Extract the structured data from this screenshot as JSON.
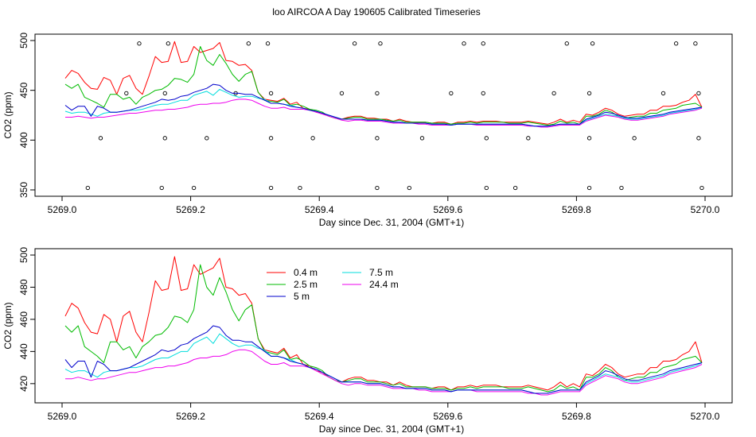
{
  "title": "loo AIRCOA A  Day 190605  Calibrated Timeseries",
  "series_colors": {
    "0.4 m": "#ff0000",
    "2.5 m": "#00bb00",
    "5 m": "#0000cc",
    "7.5 m": "#00dddd",
    "24.4 m": "#ee00ee"
  },
  "chart_data": [
    {
      "type": "line",
      "xlabel": "Day since Dec. 31, 2004 (GMT+1)",
      "ylabel": "CO2 (ppm)",
      "xlim": [
        5269.0,
        5270.0
      ],
      "ylim": [
        350,
        500
      ],
      "xticks": [
        "5269.0",
        "5269.2",
        "5269.4",
        "5269.6",
        "5269.8",
        "5270.0"
      ],
      "yticks": [
        "350",
        "400",
        "450",
        "500"
      ],
      "grid": false,
      "legend": "none",
      "x": [
        5269.005,
        5269.015,
        5269.025,
        5269.035,
        5269.045,
        5269.055,
        5269.065,
        5269.075,
        5269.085,
        5269.095,
        5269.105,
        5269.115,
        5269.125,
        5269.135,
        5269.145,
        5269.155,
        5269.165,
        5269.175,
        5269.185,
        5269.195,
        5269.205,
        5269.215,
        5269.225,
        5269.235,
        5269.245,
        5269.255,
        5269.265,
        5269.275,
        5269.285,
        5269.295,
        5269.305,
        5269.315,
        5269.325,
        5269.335,
        5269.345,
        5269.355,
        5269.365,
        5269.375,
        5269.385,
        5269.395,
        5269.405,
        5269.415,
        5269.425,
        5269.435,
        5269.445,
        5269.455,
        5269.465,
        5269.475,
        5269.485,
        5269.495,
        5269.505,
        5269.515,
        5269.525,
        5269.535,
        5269.545,
        5269.555,
        5269.565,
        5269.575,
        5269.585,
        5269.595,
        5269.605,
        5269.615,
        5269.625,
        5269.635,
        5269.645,
        5269.655,
        5269.665,
        5269.675,
        5269.685,
        5269.695,
        5269.705,
        5269.715,
        5269.725,
        5269.735,
        5269.745,
        5269.755,
        5269.765,
        5269.775,
        5269.785,
        5269.795,
        5269.805,
        5269.815,
        5269.825,
        5269.835,
        5269.845,
        5269.855,
        5269.865,
        5269.875,
        5269.885,
        5269.895,
        5269.905,
        5269.915,
        5269.925,
        5269.935,
        5269.945,
        5269.955,
        5269.965,
        5269.975,
        5269.985,
        5269.995
      ],
      "series": [
        {
          "name": "0.4 m",
          "color": "#ff0000",
          "values": [
            462,
            470,
            467,
            458,
            452,
            451,
            463,
            460,
            446,
            462,
            465,
            452,
            446,
            464,
            484,
            478,
            479,
            499,
            478,
            479,
            494,
            488,
            490,
            492,
            498,
            480,
            479,
            475,
            476,
            470,
            448,
            441,
            440,
            439,
            442,
            436,
            438,
            432,
            431,
            428,
            427,
            424,
            422,
            421,
            423,
            424,
            424,
            422,
            422,
            421,
            421,
            419,
            421,
            419,
            418,
            418,
            418,
            417,
            418,
            418,
            416,
            418,
            418,
            419,
            418,
            419,
            419,
            419,
            418,
            418,
            418,
            418,
            419,
            418,
            417,
            416,
            418,
            421,
            418,
            420,
            418,
            426,
            425,
            428,
            432,
            430,
            426,
            424,
            425,
            426,
            426,
            430,
            430,
            434,
            434,
            435,
            438,
            440,
            446,
            433
          ]
        },
        {
          "name": "2.5 m",
          "color": "#00bb00",
          "values": [
            456,
            452,
            456,
            443,
            440,
            437,
            433,
            446,
            446,
            441,
            443,
            436,
            443,
            446,
            450,
            451,
            455,
            462,
            461,
            458,
            466,
            494,
            480,
            475,
            486,
            477,
            466,
            459,
            466,
            469,
            448,
            440,
            439,
            438,
            441,
            435,
            436,
            434,
            431,
            430,
            428,
            424,
            422,
            421,
            422,
            423,
            423,
            421,
            421,
            421,
            420,
            419,
            420,
            418,
            418,
            418,
            418,
            417,
            417,
            417,
            416,
            417,
            417,
            418,
            417,
            418,
            418,
            418,
            418,
            417,
            417,
            417,
            418,
            417,
            416,
            415,
            416,
            419,
            417,
            418,
            416,
            424,
            424,
            426,
            430,
            428,
            424,
            422,
            423,
            424,
            424,
            427,
            427,
            430,
            431,
            432,
            435,
            436,
            437,
            433
          ]
        },
        {
          "name": "5 m",
          "color": "#0000cc",
          "values": [
            435,
            430,
            434,
            434,
            424,
            434,
            432,
            428,
            428,
            429,
            430,
            432,
            434,
            436,
            438,
            441,
            440,
            441,
            444,
            445,
            448,
            450,
            452,
            456,
            455,
            450,
            447,
            447,
            446,
            446,
            443,
            440,
            437,
            437,
            436,
            434,
            433,
            432,
            430,
            429,
            427,
            425,
            423,
            421,
            421,
            421,
            421,
            420,
            420,
            420,
            419,
            418,
            418,
            417,
            417,
            417,
            417,
            416,
            416,
            416,
            415,
            416,
            416,
            416,
            416,
            416,
            416,
            416,
            416,
            416,
            416,
            416,
            415,
            414,
            414,
            414,
            415,
            416,
            416,
            416,
            416,
            421,
            423,
            425,
            428,
            427,
            425,
            423,
            422,
            422,
            423,
            424,
            425,
            426,
            428,
            429,
            430,
            431,
            432,
            433
          ]
        },
        {
          "name": "7.5 m",
          "color": "#00dddd",
          "values": [
            429,
            427,
            428,
            428,
            426,
            424,
            427,
            428,
            428,
            429,
            430,
            430,
            431,
            433,
            435,
            436,
            436,
            438,
            440,
            440,
            445,
            447,
            449,
            445,
            451,
            448,
            445,
            443,
            444,
            444,
            442,
            441,
            437,
            437,
            436,
            435,
            433,
            432,
            430,
            429,
            427,
            425,
            423,
            421,
            421,
            421,
            421,
            420,
            420,
            420,
            419,
            418,
            418,
            417,
            417,
            417,
            417,
            416,
            416,
            416,
            415,
            416,
            416,
            416,
            416,
            416,
            416,
            416,
            416,
            416,
            416,
            416,
            415,
            414,
            414,
            414,
            415,
            416,
            416,
            416,
            416,
            420,
            422,
            424,
            426,
            425,
            424,
            422,
            421,
            421,
            422,
            423,
            424,
            425,
            427,
            428,
            429,
            430,
            431,
            433
          ]
        },
        {
          "name": "24.4 m",
          "color": "#ee00ee",
          "values": [
            423,
            423,
            424,
            423,
            422,
            423,
            423,
            424,
            425,
            426,
            427,
            427,
            428,
            429,
            430,
            430,
            431,
            431,
            432,
            433,
            435,
            436,
            436,
            437,
            437,
            438,
            440,
            441,
            441,
            440,
            437,
            434,
            432,
            432,
            433,
            431,
            431,
            431,
            430,
            428,
            426,
            424,
            422,
            420,
            419,
            420,
            420,
            419,
            419,
            419,
            418,
            417,
            417,
            417,
            417,
            416,
            416,
            415,
            415,
            415,
            415,
            416,
            416,
            416,
            415,
            415,
            415,
            415,
            415,
            415,
            415,
            415,
            414,
            414,
            413,
            413,
            414,
            415,
            415,
            415,
            415,
            419,
            421,
            423,
            425,
            424,
            423,
            421,
            420,
            420,
            421,
            422,
            423,
            424,
            426,
            427,
            428,
            429,
            430,
            432
          ]
        }
      ],
      "outliers": [
        {
          "x": 5269.04,
          "y": 352
        },
        {
          "x": 5269.06,
          "y": 402
        },
        {
          "x": 5269.1,
          "y": 447
        },
        {
          "x": 5269.12,
          "y": 497
        },
        {
          "x": 5269.155,
          "y": 352
        },
        {
          "x": 5269.16,
          "y": 402
        },
        {
          "x": 5269.16,
          "y": 447
        },
        {
          "x": 5269.165,
          "y": 497
        },
        {
          "x": 5269.205,
          "y": 352
        },
        {
          "x": 5269.225,
          "y": 402
        },
        {
          "x": 5269.27,
          "y": 447
        },
        {
          "x": 5269.29,
          "y": 497
        },
        {
          "x": 5269.325,
          "y": 352
        },
        {
          "x": 5269.325,
          "y": 402
        },
        {
          "x": 5269.325,
          "y": 447
        },
        {
          "x": 5269.32,
          "y": 497
        },
        {
          "x": 5269.37,
          "y": 352
        },
        {
          "x": 5269.39,
          "y": 402
        },
        {
          "x": 5269.435,
          "y": 447
        },
        {
          "x": 5269.455,
          "y": 497
        },
        {
          "x": 5269.49,
          "y": 352
        },
        {
          "x": 5269.49,
          "y": 402
        },
        {
          "x": 5269.49,
          "y": 447
        },
        {
          "x": 5269.495,
          "y": 497
        },
        {
          "x": 5269.54,
          "y": 352
        },
        {
          "x": 5269.56,
          "y": 402
        },
        {
          "x": 5269.605,
          "y": 447
        },
        {
          "x": 5269.625,
          "y": 497
        },
        {
          "x": 5269.66,
          "y": 352
        },
        {
          "x": 5269.66,
          "y": 402
        },
        {
          "x": 5269.655,
          "y": 447
        },
        {
          "x": 5269.655,
          "y": 497
        },
        {
          "x": 5269.705,
          "y": 352
        },
        {
          "x": 5269.725,
          "y": 402
        },
        {
          "x": 5269.765,
          "y": 447
        },
        {
          "x": 5269.785,
          "y": 497
        },
        {
          "x": 5269.82,
          "y": 352
        },
        {
          "x": 5269.82,
          "y": 402
        },
        {
          "x": 5269.82,
          "y": 447
        },
        {
          "x": 5269.825,
          "y": 497
        },
        {
          "x": 5269.87,
          "y": 352
        },
        {
          "x": 5269.89,
          "y": 402
        },
        {
          "x": 5269.935,
          "y": 447
        },
        {
          "x": 5269.955,
          "y": 497
        },
        {
          "x": 5269.995,
          "y": 352
        },
        {
          "x": 5269.99,
          "y": 402
        },
        {
          "x": 5269.99,
          "y": 447
        },
        {
          "x": 5269.985,
          "y": 497
        }
      ]
    },
    {
      "type": "line",
      "xlabel": "Day since Dec. 31, 2004 (GMT+1)",
      "ylabel": "CO2 (ppm)",
      "xlim": [
        5269.0,
        5270.0
      ],
      "ylim": [
        412,
        500
      ],
      "xticks": [
        "5269.0",
        "5269.2",
        "5269.4",
        "5269.6",
        "5269.8",
        "5270.0"
      ],
      "yticks": [
        "420",
        "440",
        "460",
        "480",
        "500"
      ],
      "grid": false,
      "legend": "top-left",
      "legend_entries": [
        "0.4 m",
        "2.5 m",
        "5 m",
        "7.5 m",
        "24.4 m"
      ],
      "uses_series_of_first_chart": true
    }
  ]
}
